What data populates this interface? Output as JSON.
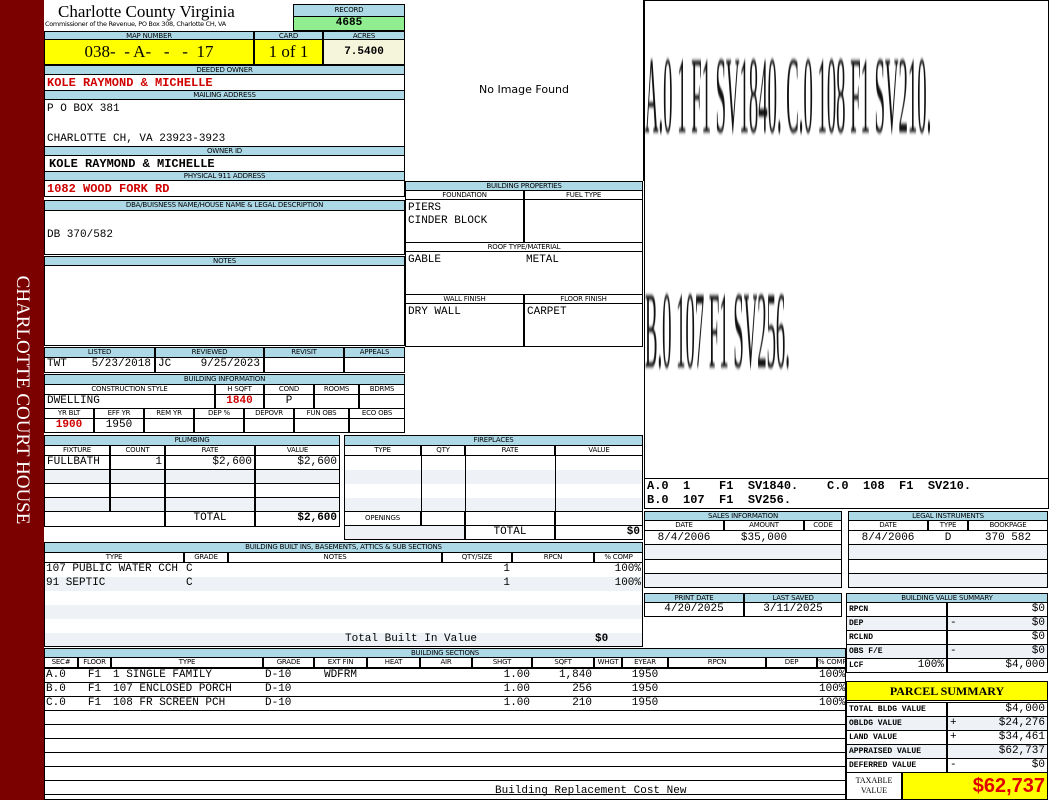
{
  "side_label": "CHARLOTTE COURT HOUSE",
  "header": {
    "title": "Charlotte County Virginia",
    "subtitle": "Commissioner of the Revenue, PO Box 308, Charlotte CH, VA",
    "record_label": "RECORD",
    "record": "4685"
  },
  "parcel": {
    "map_label": "MAP NUMBER",
    "map": "038-  - A-   -   -  17",
    "card_label": "CARD",
    "card": "1 of 1",
    "acres_label": "ACRES",
    "acres": "7.5400"
  },
  "owner": {
    "deeded_label": "DEEDED OWNER",
    "deeded": "KOLE RAYMOND & MICHELLE",
    "mailing_label": "MAILING ADDRESS",
    "mail1": "P O BOX 381",
    "mail2": "CHARLOTTE CH, VA 23923-3923",
    "id_label": "OWNER ID",
    "id": "KOLE RAYMOND & MICHELLE",
    "addr_label": "PHYSICAL 911 ADDRESS",
    "addr": "1082 WOOD FORK RD"
  },
  "legal": {
    "label": "DBA/BUISNESS NAME/HOUSE NAME & LEGAL DESCRIPTION",
    "value": "DB 370/582"
  },
  "notes": {
    "label": "NOTES"
  },
  "review": {
    "listed_label": "LISTED",
    "listed_by": "TWT",
    "listed": "5/23/2018",
    "reviewed_label": "REVIEWED",
    "reviewed_by": "JC",
    "reviewed": "9/25/2023",
    "revisit_label": "REVISIT",
    "appeals_label": "APPEALS"
  },
  "building_info": {
    "label": "BUILDING INFORMATION",
    "style_label": "CONSTRUCTION STYLE",
    "style": "DWELLING",
    "hsqft_label": "H SQFT",
    "hsqft": "1840",
    "cond_label": "COND",
    "cond": "P",
    "rooms_label": "ROOMS",
    "bdrms_label": "BDRMS",
    "yrblt_label": "YR BLT",
    "yrblt": "1900",
    "effyr_label": "EFF YR",
    "effyr": "1950",
    "remyr_label": "REM YR",
    "dep_label": "DEP %",
    "depovr_label": "DEPOVR",
    "funobs_label": "FUN OBS",
    "ecoobs_label": "ECO OBS"
  },
  "plumbing": {
    "label": "PLUMBING",
    "cols": [
      "FIXTURE",
      "COUNT",
      "RATE",
      "VALUE"
    ],
    "rows": [
      [
        "FULLBATH",
        "1",
        "$2,600",
        "$2,600"
      ]
    ],
    "total_label": "TOTAL",
    "total": "$2,600"
  },
  "fireplaces": {
    "label": "FIREPLACES",
    "cols": [
      "TYPE",
      "QTY",
      "RATE",
      "VALUE"
    ],
    "openings_label": "OPENINGS",
    "total_label": "TOTAL",
    "total": "$0"
  },
  "builtins": {
    "label": "BUILDING BUILT INS, BASEMENTS, ATTICS & SUB SECTIONS",
    "cols": [
      "TYPE",
      "GRADE",
      "NOTES",
      "QTY/SIZE",
      "RPCN",
      "% COMP"
    ],
    "rows": [
      [
        "107 PUBLIC WATER CCH",
        "C",
        "",
        "1",
        "",
        "100%"
      ],
      [
        "91 SEPTIC",
        "C",
        "",
        "1",
        "",
        "100%"
      ]
    ],
    "total_label": "Total Built In Value",
    "total": "$0"
  },
  "sections": {
    "label": "BUILDING SECTIONS",
    "cols": [
      "SEC#",
      "FLOOR",
      "TYPE",
      "GRADE",
      "EXT FIN",
      "HEAT",
      "AIR",
      "SHGT",
      "SQFT",
      "WHGT",
      "EYEAR",
      "RPCN",
      "DEP",
      "% COMP"
    ],
    "rows": [
      [
        "A.0",
        "F1",
        "1 SINGLE FAMILY",
        "D-10",
        "WDFRM",
        "",
        "",
        "1.00",
        "1,840",
        "",
        "1950",
        "",
        "",
        "100%"
      ],
      [
        "B.0",
        "F1",
        "107 ENCLOSED PORCH",
        "D-10",
        "",
        "",
        "",
        "1.00",
        "256",
        "",
        "1950",
        "",
        "",
        "100%"
      ],
      [
        "C.0",
        "F1",
        "108 FR SCREEN PCH",
        "D-10",
        "",
        "",
        "",
        "1.00",
        "210",
        "",
        "1950",
        "",
        "",
        "100%"
      ]
    ],
    "footer": "Building Replacement Cost New"
  },
  "image": {
    "text": "No Image Found"
  },
  "properties": {
    "label": "BUILDING PROPERTIES",
    "foundation_label": "FOUNDATION",
    "foundation1": "PIERS",
    "foundation2": "CINDER BLOCK",
    "fuel_label": "FUEL TYPE",
    "roof_label": "ROOF TYPE/MATERIAL",
    "roof_type": "GABLE",
    "roof_material": "METAL",
    "wall_label": "WALL FINISH",
    "wall": "DRY WALL",
    "floor_label": "FLOOR FINISH",
    "floor": "CARPET"
  },
  "sketch": {
    "line1": "A.0  1   F1  SV1840.   C.0  108  F1  SV210.",
    "line2": "B.0  107  F1  SV256."
  },
  "sketch_text": {
    "line1": "A.0  1    F1  SV1840.    C.0  108  F1  SV210.",
    "line2": "B.0  107  F1  SV256."
  },
  "sales": {
    "label": "SALES INFORMATION",
    "cols": [
      "DATE",
      "AMOUNT",
      "CODE"
    ],
    "date": "8/4/2006",
    "amount": "$35,000",
    "code": ""
  },
  "instruments": {
    "label": "LEGAL INSTRUMENTS",
    "cols": [
      "DATE",
      "TYPE",
      "BOOKPAGE"
    ],
    "date": "8/4/2006",
    "type": "D",
    "bookpage": "370 582"
  },
  "dates": {
    "print_label": "PRINT DATE",
    "print": "4/20/2025",
    "saved_label": "LAST SAVED",
    "saved": "3/11/2025"
  },
  "value_summary": {
    "label": "BUILDING VALUE SUMMARY",
    "rows": [
      {
        "label": "RPCN",
        "sign": "",
        "value": "$0"
      },
      {
        "label": "DEP",
        "sign": "-",
        "value": "$0"
      },
      {
        "label": "RCLND",
        "sign": "",
        "value": "$0"
      },
      {
        "label": "OBS F/E",
        "sign": "-",
        "value": "$0"
      },
      {
        "label": "LCF",
        "pct": "100%",
        "sign": "",
        "value": "$4,000"
      }
    ]
  },
  "parcel_summary": {
    "label": "PARCEL SUMMARY",
    "rows": [
      {
        "label": "TOTAL BLDG VALUE",
        "sign": "",
        "value": "$4,000"
      },
      {
        "label": "OBLDG VALUE",
        "sign": "+",
        "value": "$24,276"
      },
      {
        "label": "LAND VALUE",
        "sign": "+",
        "value": "$34,461"
      },
      {
        "label": "APPRAISED VALUE",
        "sign": "",
        "value": "$62,737"
      },
      {
        "label": "DEFERRED VALUE",
        "sign": "-",
        "value": "$0"
      }
    ],
    "taxable_label1": "TAXABLE",
    "taxable_label2": "VALUE",
    "taxable": "$62,737"
  },
  "colors": {
    "header_blue": "#add8e6",
    "highlight_yellow": "#ffff00",
    "record_green": "#90ee90",
    "side_red": "#7b0000",
    "value_red": "#d00000"
  }
}
